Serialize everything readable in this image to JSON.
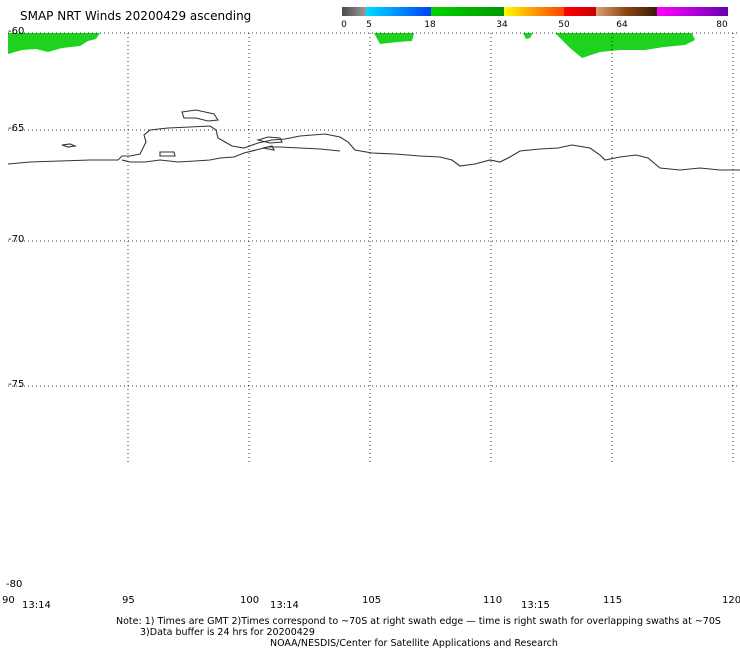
{
  "title": "SMAP NRT Winds 20200429 ascending",
  "color_scale": {
    "labels": [
      "0",
      "5",
      "18",
      "34",
      "50",
      "64",
      "80"
    ],
    "colors": [
      "#7f7f7f",
      "#00c8ff",
      "#00c800",
      "#ffcc00",
      "#e60000",
      "#8b4513",
      "#a000c8"
    ]
  },
  "latitudes": [
    "-60",
    "-65",
    "-70",
    "-75",
    "-80"
  ],
  "longitudes": [
    "90",
    "95",
    "100",
    "105",
    "110",
    "115",
    "120"
  ],
  "times": [
    "13:14",
    "13:14",
    "13:15"
  ],
  "notes": {
    "line1": "Note: 1) Times are GMT 2)Times correspond to ~70S at right swath edge — time is right swath for overlapping swaths at ~70S",
    "line2": "3)Data buffer is 24 hrs for 20200429",
    "line3": "NOAA/NESDIS/Center for Satellite Applications and Research"
  }
}
